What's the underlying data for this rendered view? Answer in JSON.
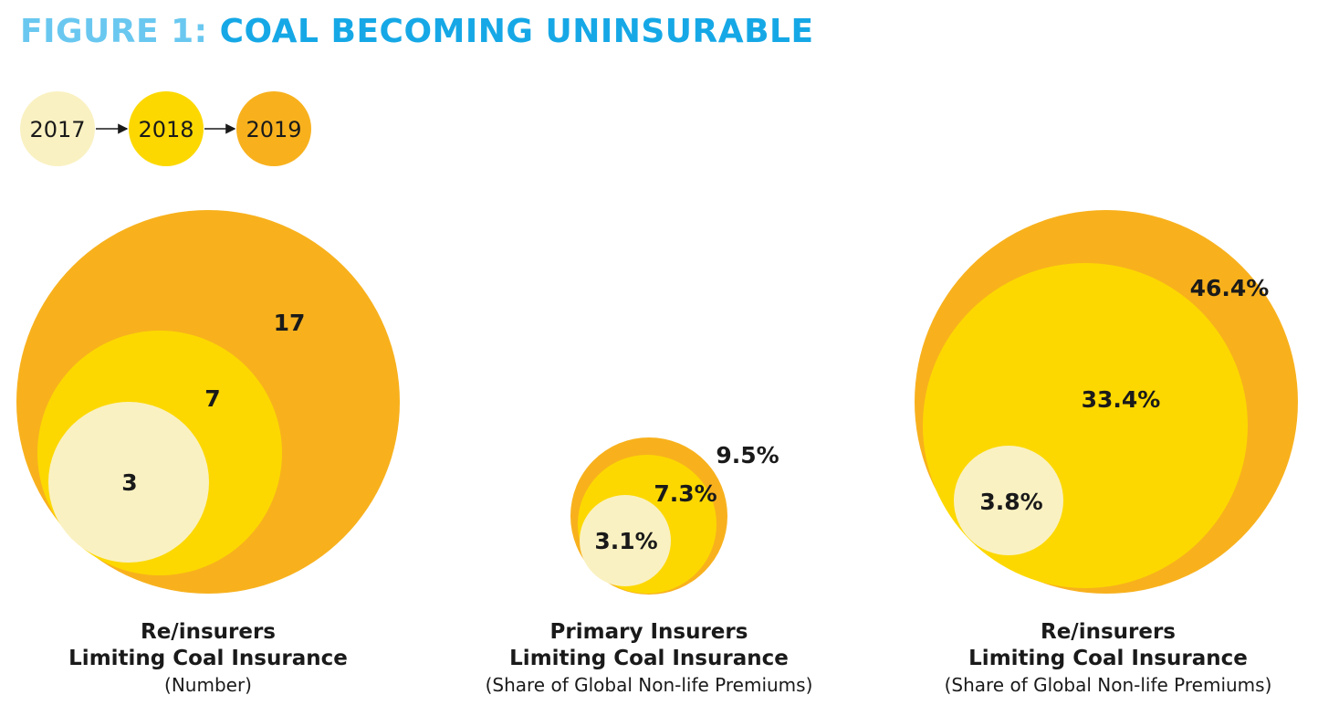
{
  "figure": {
    "title_prefix": "FIGURE 1:",
    "title_main": "COAL BECOMING UNINSURABLE"
  },
  "colors": {
    "y2017": "#faf1c2",
    "y2018": "#fcd800",
    "y2019": "#f8b11d"
  },
  "legend": {
    "items": [
      {
        "label": "2017",
        "color": "#faf1c2"
      },
      {
        "label": "2018",
        "color": "#fcd800"
      },
      {
        "label": "2019",
        "color": "#f8b11d"
      }
    ]
  },
  "chart_data": [
    {
      "type": "bubble",
      "title": "Re/insurers",
      "title_line2": "Limiting Coal Insurance",
      "subtitle": "(Number)",
      "series": [
        {
          "name": "2019",
          "value": 17,
          "label": "17"
        },
        {
          "name": "2018",
          "value": 7,
          "label": "7"
        },
        {
          "name": "2017",
          "value": 3,
          "label": "3"
        }
      ]
    },
    {
      "type": "bubble",
      "title": "Primary Insurers",
      "title_line2": "Limiting Coal Insurance",
      "subtitle": "(Share of Global Non-life Premiums)",
      "series": [
        {
          "name": "2019",
          "value": 9.5,
          "label": "9.5%"
        },
        {
          "name": "2018",
          "value": 7.3,
          "label": "7.3%"
        },
        {
          "name": "2017",
          "value": 3.1,
          "label": "3.1%"
        }
      ]
    },
    {
      "type": "bubble",
      "title": "Re/insurers",
      "title_line2": "Limiting Coal Insurance",
      "subtitle": "(Share of Global Non-life Premiums)",
      "series": [
        {
          "name": "2019",
          "value": 46.4,
          "label": "46.4%"
        },
        {
          "name": "2018",
          "value": 33.4,
          "label": "33.4%"
        },
        {
          "name": "2017",
          "value": 3.8,
          "label": "3.8%"
        }
      ]
    }
  ]
}
